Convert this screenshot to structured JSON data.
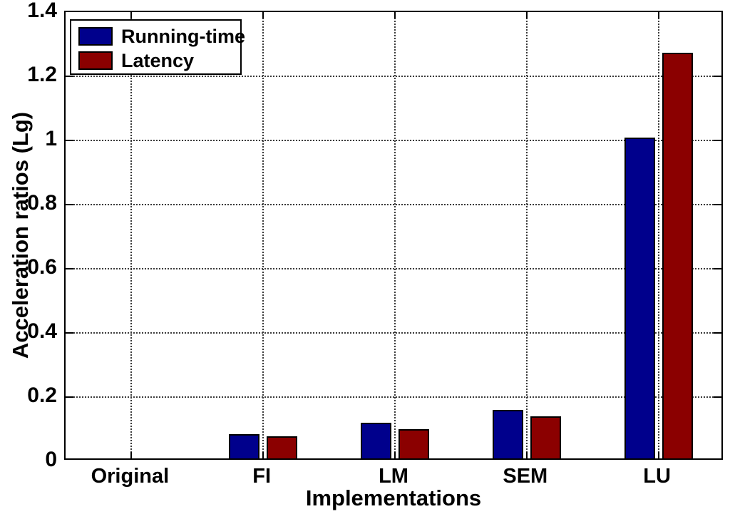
{
  "figure": {
    "background": "#ffffff"
  },
  "chart_data": {
    "type": "bar",
    "title": "",
    "xlabel": "Implementations",
    "ylabel": "Acceleration ratios (Lg)",
    "categories": [
      "Original",
      "FI",
      "LM",
      "SEM",
      "LU"
    ],
    "series": [
      {
        "name": "Running-time",
        "color": "#00008C",
        "values": [
          0,
          0.075,
          0.11,
          0.15,
          1.0
        ]
      },
      {
        "name": "Latency",
        "color": "#8B0000",
        "values": [
          0,
          0.068,
          0.09,
          0.13,
          1.265
        ]
      }
    ],
    "ylim": [
      0,
      1.4
    ],
    "yticks": [
      0,
      0.2,
      0.4,
      0.6,
      0.8,
      1.0,
      1.2,
      1.4
    ],
    "ytick_labels": [
      "0",
      "0.2",
      "0.4",
      "0.6",
      "0.8",
      "1",
      "1.2",
      "1.4"
    ],
    "grid": true,
    "grid_style": "dotted",
    "legend_position": "top-left",
    "axis_color": "#000000",
    "plot_background": "#ffffff"
  }
}
